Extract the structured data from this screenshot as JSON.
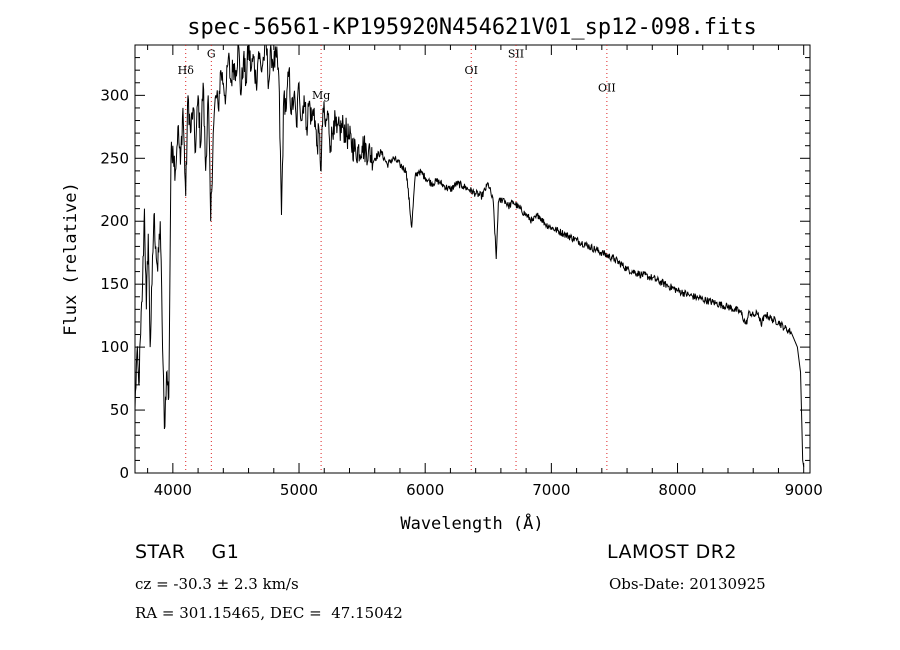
{
  "chart_data": {
    "type": "line",
    "title": "spec-56561-KP195920N454621V01_sp12-098.fits",
    "xlabel": "Wavelength (Å)",
    "ylabel": "Flux (relative)",
    "xlim": [
      3700,
      9050
    ],
    "ylim": [
      0,
      340
    ],
    "xticks": [
      4000,
      5000,
      6000,
      7000,
      8000,
      9000
    ],
    "xtick_labels": [
      "4000",
      "5000",
      "6000",
      "7000",
      "8000",
      "9000"
    ],
    "yticks": [
      0,
      50,
      100,
      150,
      200,
      250,
      300
    ],
    "ytick_labels": [
      "0",
      "50",
      "100",
      "150",
      "200",
      "250",
      "300"
    ],
    "grid": false,
    "series": [
      {
        "name": "spectrum",
        "x": [
          3700,
          3715,
          3730,
          3745,
          3760,
          3775,
          3790,
          3805,
          3820,
          3835,
          3850,
          3865,
          3880,
          3900,
          3915,
          3933,
          3950,
          3968,
          3985,
          4000,
          4020,
          4040,
          4060,
          4080,
          4102,
          4120,
          4140,
          4160,
          4180,
          4200,
          4220,
          4240,
          4260,
          4280,
          4300,
          4320,
          4340,
          4360,
          4380,
          4400,
          4420,
          4440,
          4460,
          4480,
          4500,
          4520,
          4540,
          4560,
          4580,
          4600,
          4620,
          4640,
          4660,
          4680,
          4700,
          4720,
          4740,
          4760,
          4780,
          4800,
          4820,
          4840,
          4861,
          4880,
          4900,
          4920,
          4940,
          4960,
          4980,
          5000,
          5020,
          5040,
          5060,
          5080,
          5100,
          5120,
          5140,
          5160,
          5175,
          5190,
          5210,
          5230,
          5250,
          5275,
          5300,
          5350,
          5400,
          5450,
          5500,
          5550,
          5600,
          5650,
          5700,
          5750,
          5800,
          5850,
          5893,
          5920,
          5950,
          6000,
          6050,
          6100,
          6150,
          6200,
          6250,
          6300,
          6350,
          6400,
          6450,
          6500,
          6540,
          6563,
          6580,
          6620,
          6660,
          6700,
          6750,
          6800,
          6850,
          6900,
          6950,
          7000,
          7100,
          7200,
          7300,
          7400,
          7500,
          7600,
          7700,
          7800,
          7900,
          8000,
          8100,
          8200,
          8300,
          8400,
          8450,
          8500,
          8542,
          8570,
          8600,
          8640,
          8662,
          8700,
          8750,
          8800,
          8850,
          8900,
          8950,
          8975,
          8985,
          8992,
          9000
        ],
        "values": [
          50,
          95,
          70,
          110,
          150,
          210,
          130,
          190,
          100,
          150,
          205,
          180,
          160,
          200,
          120,
          35,
          80,
          60,
          250,
          260,
          240,
          275,
          245,
          290,
          220,
          300,
          270,
          290,
          255,
          300,
          260,
          310,
          240,
          300,
          200,
          270,
          300,
          290,
          320,
          310,
          300,
          330,
          310,
          325,
          320,
          340,
          300,
          330,
          310,
          340,
          320,
          330,
          310,
          335,
          320,
          330,
          340,
          310,
          335,
          325,
          330,
          315,
          205,
          300,
          290,
          320,
          285,
          300,
          275,
          310,
          280,
          300,
          275,
          295,
          280,
          290,
          260,
          270,
          240,
          290,
          275,
          285,
          260,
          280,
          270,
          275,
          265,
          255,
          260,
          255,
          250,
          255,
          245,
          250,
          245,
          240,
          195,
          235,
          240,
          235,
          230,
          232,
          228,
          225,
          230,
          228,
          225,
          222,
          220,
          230,
          215,
          170,
          215,
          218,
          212,
          215,
          210,
          205,
          200,
          205,
          198,
          195,
          190,
          185,
          180,
          175,
          170,
          162,
          158,
          155,
          150,
          145,
          141,
          138,
          135,
          132,
          130,
          128,
          118,
          128,
          125,
          127,
          118,
          126,
          122,
          120,
          115,
          112,
          100,
          80,
          40,
          10,
          5
        ]
      }
    ],
    "annotations": [
      {
        "label": "Hδ",
        "x": 4102,
        "y": 317
      },
      {
        "label": "G",
        "x": 4305,
        "y": 330
      },
      {
        "label": "Mg",
        "x": 5175,
        "y": 297
      },
      {
        "label": "OI",
        "x": 6365,
        "y": 317
      },
      {
        "label": "SII",
        "x": 6720,
        "y": 330
      },
      {
        "label": "OII",
        "x": 7440,
        "y": 303
      }
    ]
  },
  "info": {
    "class_label": "STAR    G1",
    "cz_text": "cz = -30.3 ± 2.3 km/s",
    "coords_text": "RA = 301.15465, DEC =  47.15042",
    "survey": "LAMOST DR2",
    "obs_date": "Obs-Date: 20130925"
  }
}
